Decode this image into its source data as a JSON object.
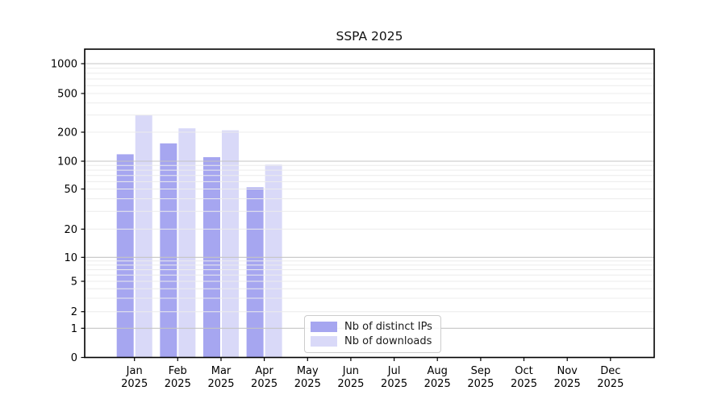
{
  "chart_data": {
    "type": "bar",
    "title": "SSPA 2025",
    "scale": "symlog",
    "grid": true,
    "legend_position": "inside-bottom-center",
    "categories": [
      {
        "month": "Jan",
        "year": "2025"
      },
      {
        "month": "Feb",
        "year": "2025"
      },
      {
        "month": "Mar",
        "year": "2025"
      },
      {
        "month": "Apr",
        "year": "2025"
      },
      {
        "month": "May",
        "year": "2025"
      },
      {
        "month": "Jun",
        "year": "2025"
      },
      {
        "month": "Jul",
        "year": "2025"
      },
      {
        "month": "Aug",
        "year": "2025"
      },
      {
        "month": "Sep",
        "year": "2025"
      },
      {
        "month": "Oct",
        "year": "2025"
      },
      {
        "month": "Nov",
        "year": "2025"
      },
      {
        "month": "Dec",
        "year": "2025"
      }
    ],
    "series": [
      {
        "name": "Nb of distinct IPs",
        "color": "#a6a6f0",
        "values": [
          118,
          153,
          110,
          52,
          null,
          null,
          null,
          null,
          null,
          null,
          null,
          null
        ]
      },
      {
        "name": "Nb of downloads",
        "color": "#d9d9f8",
        "values": [
          300,
          219,
          209,
          92,
          null,
          null,
          null,
          null,
          null,
          null,
          null,
          null
        ]
      }
    ],
    "y_ticks": [
      0,
      1,
      2,
      5,
      10,
      20,
      50,
      100,
      200,
      500,
      1000
    ],
    "y_major_gridlines": [
      1,
      10,
      100,
      1000
    ],
    "ylim": [
      0,
      1500
    ],
    "colors": {
      "major_grid": "#c4c4c4",
      "minor_grid": "#ececec",
      "axis": "#000000",
      "tick_text": "#000000"
    }
  }
}
